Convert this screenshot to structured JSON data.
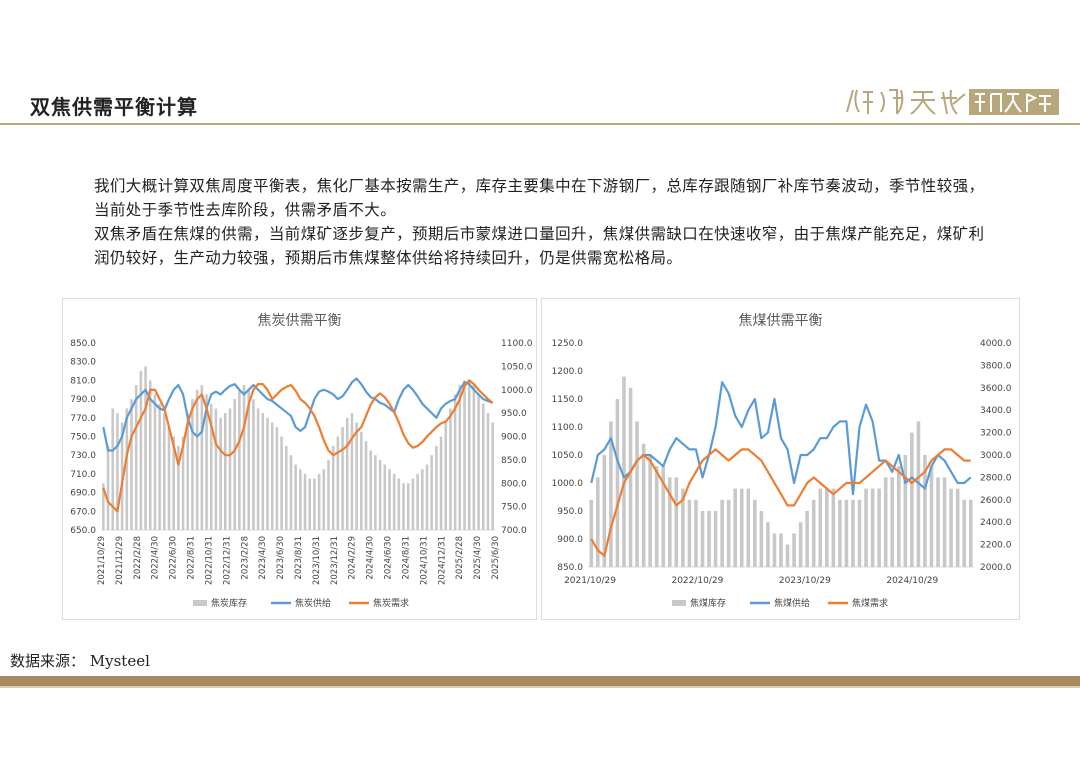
{
  "header": {
    "title": "双焦供需平衡计算",
    "logo_text": "淵泓天成研究院"
  },
  "body_text": {
    "p1": "我们大概计算双焦周度平衡表，焦化厂基本按需生产，库存主要集中在下游钢厂，总库存跟随钢厂补库节奏波动，季节性较强，当前处于季节性去库阶段，供需矛盾不大。",
    "p2": "双焦矛盾在焦煤的供需，当前煤矿逐步复产，预期后市蒙煤进口量回升，焦煤供需缺口在快速收窄，由于焦煤产能充足，煤矿利润仍较好，生产动力较强，预期后市焦煤整体供给将持续回升，仍是供需宽松格局。"
  },
  "footer": {
    "source": "数据来源：  Mysteel"
  },
  "colors": {
    "inventory": "#c8c8c8",
    "supply": "#5b9bd5",
    "demand": "#ed7d31",
    "gold": "#a78b5d"
  },
  "chart_data": [
    {
      "type": "bar+line",
      "title": "焦炭供需平衡",
      "y_left": {
        "min": 650,
        "max": 850,
        "step": 20,
        "ticks": [
          "650.0",
          "670.0",
          "690.0",
          "710.0",
          "730.0",
          "750.0",
          "770.0",
          "790.0",
          "810.0",
          "830.0",
          "850.0"
        ]
      },
      "y_right": {
        "min": 700,
        "max": 1100,
        "step": 50,
        "ticks": [
          "700.0",
          "750.0",
          "800.0",
          "850.0",
          "900.0",
          "950.0",
          "1000.0",
          "1050.0",
          "1100.0"
        ]
      },
      "x_ticks": [
        "2021/10/29",
        "2021/12/29",
        "2022/2/28",
        "2022/4/30",
        "2022/6/30",
        "2022/8/31",
        "2022/10/31",
        "2022/12/31",
        "2023/2/28",
        "2023/4/30",
        "2023/6/30",
        "2023/8/31",
        "2023/10/31",
        "2023/12/31",
        "2024/2/29",
        "2024/4/30",
        "2024/6/30",
        "2024/8/31",
        "2024/10/31",
        "2024/12/31",
        "2025/2/28",
        "2025/4/30",
        "2025/6/30"
      ],
      "series": [
        {
          "name": "焦炭库存",
          "kind": "bar",
          "axis": "right",
          "values": [
            800,
            880,
            960,
            950,
            930,
            960,
            980,
            1010,
            1040,
            1050,
            1020,
            990,
            970,
            950,
            920,
            900,
            880,
            900,
            950,
            980,
            1000,
            1010,
            990,
            970,
            960,
            940,
            950,
            960,
            980,
            1000,
            1010,
            1000,
            980,
            960,
            950,
            940,
            930,
            920,
            900,
            880,
            860,
            840,
            830,
            820,
            810,
            810,
            820,
            830,
            850,
            880,
            900,
            920,
            940,
            950,
            930,
            910,
            890,
            870,
            860,
            850,
            840,
            830,
            820,
            810,
            800,
            800,
            810,
            820,
            830,
            840,
            860,
            880,
            900,
            930,
            960,
            990,
            1010,
            1020,
            1020,
            1010,
            990,
            970,
            950,
            930
          ]
        },
        {
          "name": "焦炭供给",
          "kind": "line",
          "axis": "left",
          "values": [
            760,
            735,
            735,
            740,
            750,
            770,
            780,
            790,
            795,
            800,
            790,
            785,
            780,
            778,
            790,
            800,
            805,
            795,
            770,
            755,
            750,
            755,
            780,
            795,
            798,
            795,
            800,
            804,
            806,
            800,
            795,
            800,
            805,
            800,
            795,
            790,
            788,
            784,
            780,
            776,
            772,
            760,
            756,
            760,
            775,
            790,
            798,
            800,
            798,
            795,
            790,
            793,
            800,
            808,
            812,
            806,
            798,
            792,
            790,
            786,
            784,
            780,
            776,
            790,
            800,
            805,
            800,
            793,
            785,
            780,
            775,
            770,
            780,
            785,
            788,
            790,
            800,
            808,
            806,
            800,
            795,
            790,
            788,
            786
          ]
        },
        {
          "name": "焦炭需求",
          "kind": "line",
          "axis": "left",
          "values": [
            695,
            680,
            675,
            670,
            700,
            730,
            750,
            760,
            770,
            780,
            800,
            800,
            790,
            780,
            760,
            740,
            720,
            740,
            765,
            780,
            790,
            795,
            780,
            762,
            742,
            735,
            730,
            730,
            735,
            745,
            760,
            785,
            800,
            806,
            806,
            800,
            790,
            795,
            800,
            803,
            805,
            799,
            790,
            786,
            780,
            772,
            760,
            746,
            735,
            730,
            733,
            736,
            740,
            748,
            755,
            760,
            772,
            784,
            792,
            796,
            792,
            785,
            776,
            765,
            752,
            743,
            738,
            740,
            744,
            750,
            755,
            760,
            764,
            766,
            772,
            780,
            790,
            804,
            810,
            806,
            800,
            795,
            790,
            786
          ]
        }
      ]
    },
    {
      "type": "bar+line",
      "title": "焦煤供需平衡",
      "y_left": {
        "min": 850,
        "max": 1250,
        "step": 50,
        "ticks": [
          "850.0",
          "900.0",
          "950.0",
          "1000.0",
          "1050.0",
          "1100.0",
          "1150.0",
          "1200.0",
          "1250.0"
        ]
      },
      "y_right": {
        "min": 2000,
        "max": 4000,
        "step": 200,
        "ticks": [
          "2000.0",
          "2200.0",
          "2400.0",
          "2600.0",
          "2800.0",
          "3000.0",
          "3200.0",
          "3400.0",
          "3600.0",
          "3800.0",
          "4000.0"
        ]
      },
      "x_ticks": [
        "2021/10/29",
        "2022/10/29",
        "2023/10/29",
        "2024/10/29"
      ],
      "series": [
        {
          "name": "焦煤库存",
          "kind": "bar",
          "axis": "right",
          "values": [
            2600,
            2800,
            3000,
            3300,
            3500,
            3700,
            3600,
            3300,
            3100,
            3000,
            2900,
            2900,
            2800,
            2800,
            2700,
            2600,
            2600,
            2500,
            2500,
            2500,
            2600,
            2600,
            2700,
            2700,
            2700,
            2600,
            2500,
            2400,
            2300,
            2300,
            2200,
            2300,
            2400,
            2500,
            2600,
            2700,
            2700,
            2700,
            2600,
            2600,
            2600,
            2600,
            2700,
            2700,
            2700,
            2800,
            2800,
            2900,
            3000,
            3200,
            3300,
            3000,
            2900,
            2800,
            2800,
            2700,
            2700,
            2600,
            2600
          ]
        },
        {
          "name": "焦煤供给",
          "kind": "line",
          "axis": "left",
          "values": [
            1000,
            1050,
            1060,
            1080,
            1040,
            1010,
            1020,
            1040,
            1050,
            1050,
            1040,
            1030,
            1060,
            1080,
            1070,
            1060,
            1060,
            1010,
            1050,
            1100,
            1180,
            1160,
            1120,
            1100,
            1130,
            1150,
            1080,
            1090,
            1150,
            1080,
            1060,
            1000,
            1050,
            1050,
            1060,
            1080,
            1080,
            1100,
            1110,
            1110,
            980,
            1100,
            1140,
            1110,
            1040,
            1040,
            1020,
            1050,
            1000,
            1010,
            1000,
            990,
            1030,
            1050,
            1040,
            1020,
            1000,
            1000,
            1010
          ]
        },
        {
          "name": "焦煤需求",
          "kind": "line",
          "axis": "left",
          "values": [
            900,
            880,
            870,
            920,
            960,
            1000,
            1020,
            1040,
            1050,
            1040,
            1020,
            1000,
            980,
            960,
            970,
            1000,
            1020,
            1040,
            1050,
            1060,
            1050,
            1040,
            1050,
            1060,
            1060,
            1050,
            1040,
            1020,
            1000,
            980,
            960,
            960,
            980,
            1000,
            1010,
            1000,
            990,
            980,
            990,
            1000,
            1000,
            1000,
            1010,
            1020,
            1030,
            1040,
            1030,
            1020,
            1010,
            1000,
            1010,
            1020,
            1040,
            1050,
            1060,
            1060,
            1050,
            1040,
            1040
          ]
        }
      ],
      "legend_position": "bottom"
    }
  ]
}
